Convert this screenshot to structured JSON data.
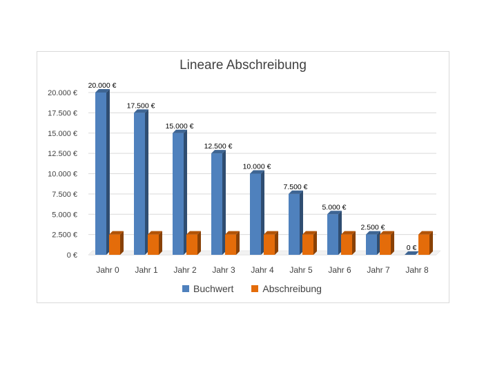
{
  "chart_data": {
    "type": "bar",
    "title": "Lineare Abschreibung",
    "categories": [
      "Jahr 0",
      "Jahr 1",
      "Jahr 2",
      "Jahr 3",
      "Jahr 4",
      "Jahr 5",
      "Jahr 6",
      "Jahr 7",
      "Jahr 8"
    ],
    "series": [
      {
        "name": "Buchwert",
        "color": "#4f81bd",
        "values": [
          20000,
          17500,
          15000,
          12500,
          10000,
          7500,
          5000,
          2500,
          0
        ],
        "labels": [
          "20.000 €",
          "17.500 €",
          "15.000 €",
          "12.500 €",
          "10.000 €",
          "7.500 €",
          "5.000 €",
          "2.500 €",
          "0 €"
        ]
      },
      {
        "name": "Abschreibung",
        "color": "#e46c0a",
        "values": [
          2500,
          2500,
          2500,
          2500,
          2500,
          2500,
          2500,
          2500,
          2500
        ]
      }
    ],
    "ylim": [
      0,
      20000
    ],
    "yticks": [
      0,
      2500,
      5000,
      7500,
      10000,
      12500,
      15000,
      17500,
      20000
    ],
    "ytick_labels": [
      "0 €",
      "2.500 €",
      "5.000 €",
      "7.500 €",
      "10.000 €",
      "12.500 €",
      "15.000 €",
      "17.500 €",
      "20.000 €"
    ],
    "legend_position": "bottom",
    "grid": true,
    "style": "3d-column"
  }
}
